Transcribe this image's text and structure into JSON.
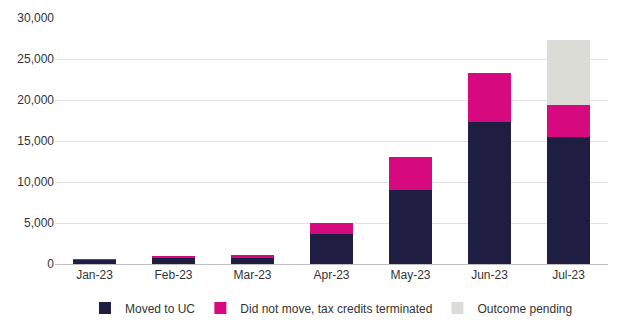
{
  "chart_data": {
    "type": "bar",
    "stacked": true,
    "categories": [
      "Jan-23",
      "Feb-23",
      "Mar-23",
      "Apr-23",
      "May-23",
      "Jun-23",
      "Jul-23"
    ],
    "series": [
      {
        "name": "Moved to UC",
        "color": "#201d42",
        "values": [
          450,
          700,
          750,
          3600,
          9000,
          17300,
          15500
        ]
      },
      {
        "name": "Did not move, tax credits terminated",
        "color": "#d60a7e",
        "values": [
          150,
          250,
          300,
          1400,
          4000,
          6000,
          3900
        ]
      },
      {
        "name": "Outcome pending",
        "color": "#dcdcd6",
        "values": [
          0,
          0,
          0,
          0,
          0,
          0,
          7900
        ]
      }
    ],
    "ylim": [
      0,
      30000
    ],
    "yticks": [
      0,
      {
        "value": 5000,
        "label": "5,000"
      },
      {
        "value": 10000,
        "label": "10,000"
      },
      {
        "value": 15000,
        "label": "15,000"
      },
      {
        "value": 20000,
        "label": "20,000"
      },
      {
        "value": 25000,
        "label": "25,000"
      },
      {
        "value": 30000,
        "label": "30,000"
      }
    ],
    "grid": true,
    "legend": "bottom"
  }
}
